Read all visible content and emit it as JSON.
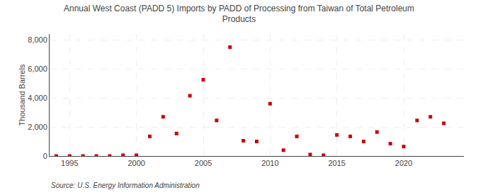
{
  "chart_data": {
    "type": "scatter",
    "title": "Annual West Coast (PADD 5) Imports by PADD of Processing from Taiwan of Total Petroleum\nProducts",
    "ylabel": "Thousand Barrels",
    "annotations": [
      "Source: U.S. Energy Information Administration"
    ],
    "x": [
      1994,
      1995,
      1996,
      1997,
      1998,
      1999,
      2000,
      2001,
      2002,
      2003,
      2004,
      2005,
      2006,
      2007,
      2008,
      2009,
      2010,
      2011,
      2012,
      2013,
      2014,
      2015,
      2016,
      2017,
      2018,
      2019,
      2020,
      2021,
      2022,
      2023
    ],
    "values": [
      0,
      0,
      0,
      0,
      0,
      50,
      50,
      1350,
      2700,
      1550,
      4150,
      5250,
      2450,
      7500,
      1050,
      1000,
      3600,
      400,
      1350,
      100,
      50,
      1450,
      1350,
      1000,
      1650,
      850,
      650,
      2450,
      2700,
      2250
    ],
    "color": "#cc0000",
    "marker": "square",
    "xlim": [
      1993.5,
      2024.5
    ],
    "ylim": [
      0,
      8400
    ],
    "xticks": [
      1995,
      2000,
      2005,
      2010,
      2015,
      2020
    ],
    "yticks": [
      0,
      {
        "value": 2000,
        "label": "2,000"
      },
      {
        "value": 4000,
        "label": "4,000"
      },
      {
        "value": 6000,
        "label": "6,000"
      },
      {
        "value": 8000,
        "label": "8,000"
      }
    ],
    "grid": true
  }
}
